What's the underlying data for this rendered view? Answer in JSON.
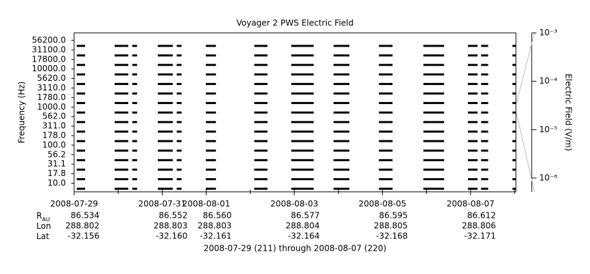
{
  "chart_data": {
    "type": "line",
    "title": "Voyager 2 PWS Electric Field",
    "y_label": "Frequency (Hz)",
    "y2_label": "Electric Field (V/m)",
    "footer": "2008-07-29 (211) through 2008-08-07 (220)",
    "categories": [
      "56200.0",
      "31100.0",
      "17800.0",
      "10000.0",
      "5620.0",
      "3110.0",
      "1780.0",
      "1000.0",
      "562.0",
      "311.0",
      "178.0",
      "100.0",
      "56.2",
      "31.1",
      "17.8",
      "10.0"
    ],
    "xlim": [
      211,
      221.03
    ],
    "xticks": [
      {
        "value": 211,
        "label": "2008-07-29"
      },
      {
        "value": 213,
        "label": "2008-07-31"
      },
      {
        "value": 214,
        "label": "2008-08-01"
      },
      {
        "value": 216,
        "label": "2008-08-03"
      },
      {
        "value": 218,
        "label": "2008-08-05"
      },
      {
        "value": 220,
        "label": "2008-08-07"
      }
    ],
    "xminorticks": [
      212,
      215,
      217,
      219,
      221
    ],
    "coverage": [
      [
        211.06,
        211.25
      ],
      [
        211.92,
        212.23
      ],
      [
        212.32,
        212.43
      ],
      [
        212.9,
        213.24
      ],
      [
        213.33,
        213.44
      ],
      [
        213.99,
        214.22
      ],
      [
        215.09,
        215.39
      ],
      [
        215.93,
        216.44
      ],
      [
        216.89,
        217.25
      ],
      [
        217.92,
        218.23
      ],
      [
        218.93,
        219.4
      ],
      [
        219.94,
        220.16
      ],
      [
        220.24,
        220.4
      ],
      [
        220.95,
        221.03
      ]
    ],
    "y2lim": [
      5.2e-07,
      0.001
    ],
    "y2log": true,
    "y2ticks": [
      {
        "value": 0.001,
        "label": "10⁻³"
      },
      {
        "value": 0.0001,
        "label": "10⁻⁴"
      },
      {
        "value": 1e-05,
        "label": "10⁻⁵"
      },
      {
        "value": 1e-06,
        "label": "10⁻⁶"
      }
    ],
    "color": "#000000",
    "ephemeris": [
      {
        "name": "R",
        "subscript": "AU",
        "values": [
          "86.534",
          "86.552",
          "86.560",
          "86.577",
          "86.595",
          "86.612"
        ]
      },
      {
        "name": "Lon",
        "values": [
          "288.802",
          "288.803",
          "288.803",
          "288.804",
          "288.805",
          "288.806"
        ]
      },
      {
        "name": "Lat",
        "values": [
          "-32.156",
          "-32.160",
          "-32.161",
          "-32.164",
          "-32.168",
          "-32.171"
        ]
      }
    ]
  }
}
